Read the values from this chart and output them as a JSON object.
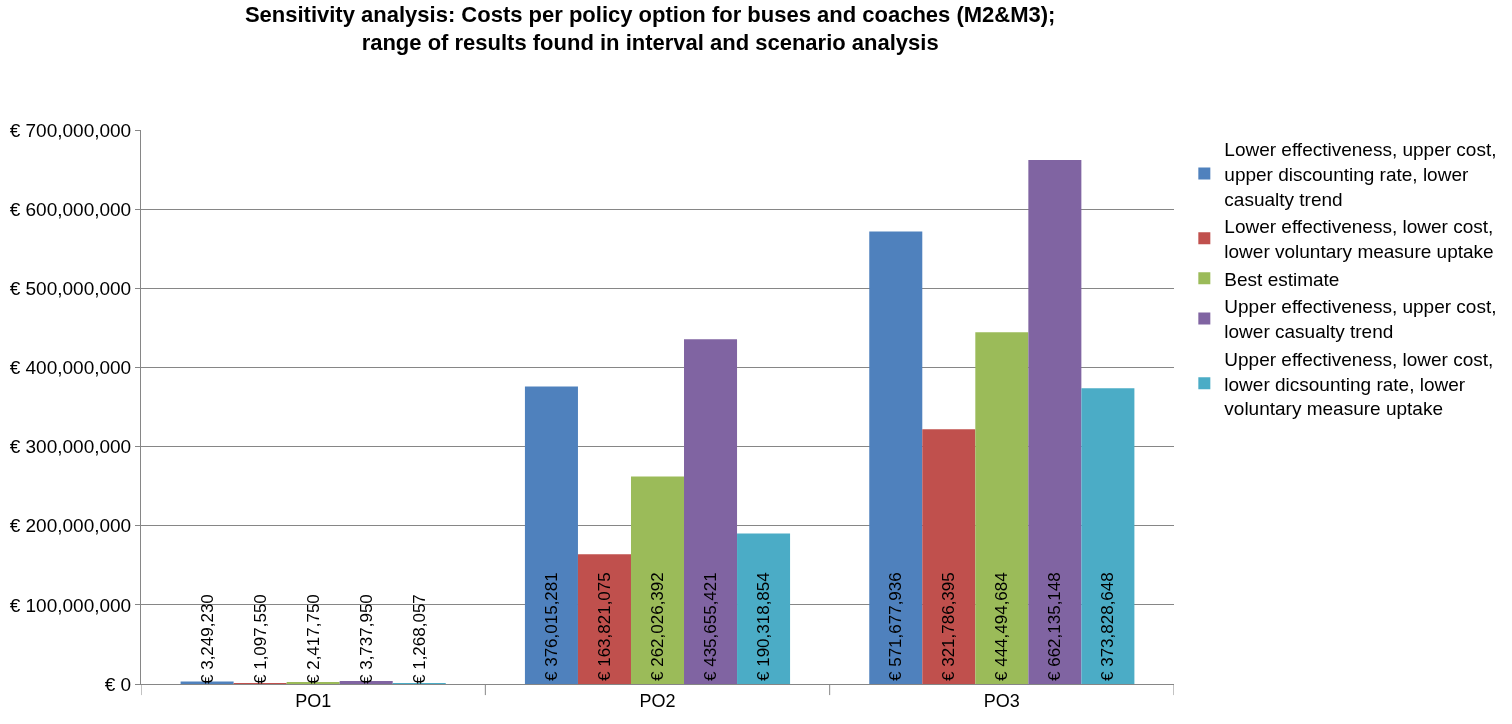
{
  "chart_data": {
    "type": "bar",
    "title": "Sensitivity analysis: Costs per policy option for buses and coaches (M2&M3); range of results found in interval and scenario analysis",
    "categories": [
      "PO1",
      "PO2",
      "PO3"
    ],
    "series": [
      {
        "name": "Lower effectiveness, upper cost, upper discounting rate, lower casualty trend",
        "color": "#4f81bd",
        "values": [
          3249230,
          376015281,
          571677936
        ],
        "value_labels": [
          "€ 3,249,230",
          "€ 376,015,281",
          "€ 571,677,936"
        ]
      },
      {
        "name": "Lower effectiveness, lower cost, lower voluntary measure uptake",
        "color": "#c0504d",
        "values": [
          1097550,
          163821075,
          321786395
        ],
        "value_labels": [
          "€ 1,097,550",
          "€ 163,821,075",
          "€ 321,786,395"
        ]
      },
      {
        "name": "Best estimate",
        "color": "#9bbb59",
        "values": [
          2417750,
          262026392,
          444494684
        ],
        "value_labels": [
          "€ 2,417,750",
          "€ 262,026,392",
          "€ 444,494,684"
        ]
      },
      {
        "name": "Upper effectiveness, upper cost, lower casualty trend",
        "color": "#8064a2",
        "values": [
          3737950,
          435655421,
          662135148
        ],
        "value_labels": [
          "€ 3,737,950",
          "€ 435,655,421",
          "€ 662,135,148"
        ]
      },
      {
        "name": "Upper effectiveness, lower cost, lower dicsounting rate, lower voluntary measure uptake",
        "color": "#4bacc6",
        "values": [
          1268057,
          190318854,
          373828648
        ],
        "value_labels": [
          "€ 1,268,057",
          "€ 190,318,854",
          "€ 373,828,648"
        ]
      }
    ],
    "ylim": [
      0,
      700000000
    ],
    "yticks": [
      {
        "value": 0,
        "label": "€ 0"
      },
      {
        "value": 100000000,
        "label": "€ 100,000,000"
      },
      {
        "value": 200000000,
        "label": "€ 200,000,000"
      },
      {
        "value": 300000000,
        "label": "€ 300,000,000"
      },
      {
        "value": 400000000,
        "label": "€ 400,000,000"
      },
      {
        "value": 500000000,
        "label": "€ 500,000,000"
      },
      {
        "value": 600000000,
        "label": "€ 600,000,000"
      },
      {
        "value": 700000000,
        "label": "€ 700,000,000"
      }
    ],
    "grid": "y",
    "legend": "right"
  }
}
